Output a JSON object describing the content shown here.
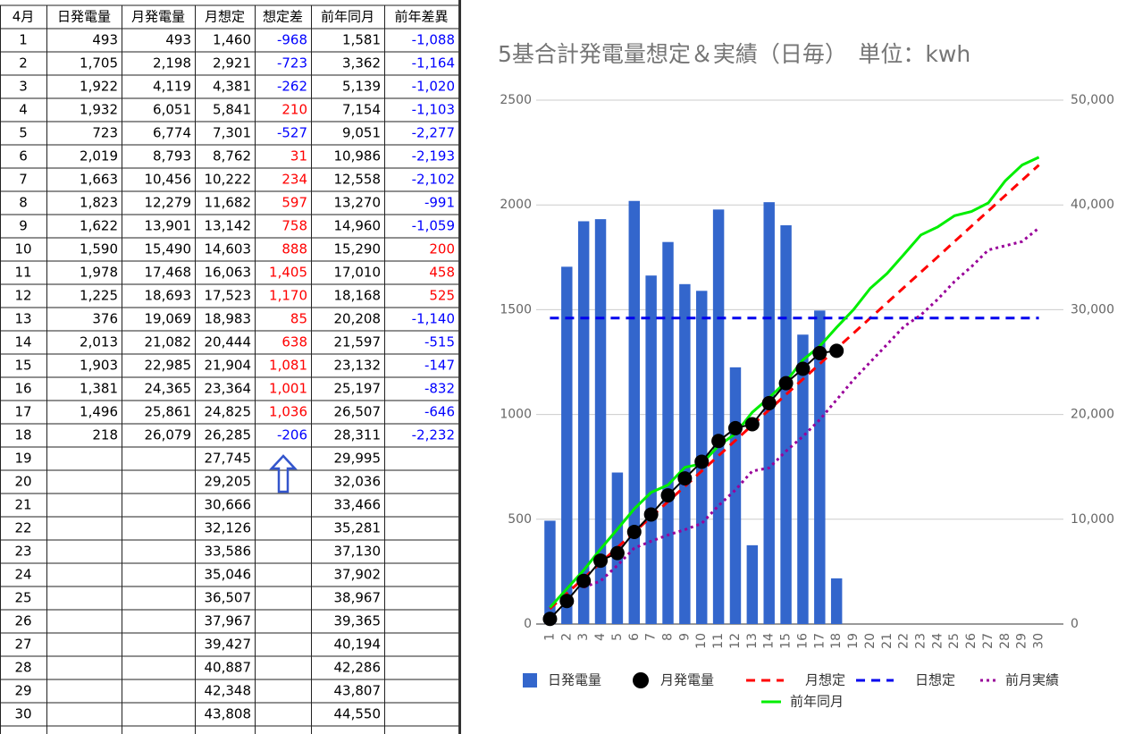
{
  "table": {
    "headers": [
      "4月",
      "日発電量",
      "月発電量",
      "月想定",
      "想定差",
      "前年同月",
      "前年差異"
    ],
    "rows": [
      [
        "1",
        "493",
        "493",
        "1,460",
        "-968",
        "1,581",
        "-1,088"
      ],
      [
        "2",
        "1,705",
        "2,198",
        "2,921",
        "-723",
        "3,362",
        "-1,164"
      ],
      [
        "3",
        "1,922",
        "4,119",
        "4,381",
        "-262",
        "5,139",
        "-1,020"
      ],
      [
        "4",
        "1,932",
        "6,051",
        "5,841",
        "210",
        "7,154",
        "-1,103"
      ],
      [
        "5",
        "723",
        "6,774",
        "7,301",
        "-527",
        "9,051",
        "-2,277"
      ],
      [
        "6",
        "2,019",
        "8,793",
        "8,762",
        "31",
        "10,986",
        "-2,193"
      ],
      [
        "7",
        "1,663",
        "10,456",
        "10,222",
        "234",
        "12,558",
        "-2,102"
      ],
      [
        "8",
        "1,823",
        "12,279",
        "11,682",
        "597",
        "13,270",
        "-991"
      ],
      [
        "9",
        "1,622",
        "13,901",
        "13,142",
        "758",
        "14,960",
        "-1,059"
      ],
      [
        "10",
        "1,590",
        "15,490",
        "14,603",
        "888",
        "15,290",
        "200"
      ],
      [
        "11",
        "1,978",
        "17,468",
        "16,063",
        "1,405",
        "17,010",
        "458"
      ],
      [
        "12",
        "1,225",
        "18,693",
        "17,523",
        "1,170",
        "18,168",
        "525"
      ],
      [
        "13",
        "376",
        "19,069",
        "18,983",
        "85",
        "20,208",
        "-1,140"
      ],
      [
        "14",
        "2,013",
        "21,082",
        "20,444",
        "638",
        "21,597",
        "-515"
      ],
      [
        "15",
        "1,903",
        "22,985",
        "21,904",
        "1,081",
        "23,132",
        "-147"
      ],
      [
        "16",
        "1,381",
        "24,365",
        "23,364",
        "1,001",
        "25,197",
        "-832"
      ],
      [
        "17",
        "1,496",
        "25,861",
        "24,825",
        "1,036",
        "26,507",
        "-646"
      ],
      [
        "18",
        "218",
        "26,079",
        "26,285",
        "-206",
        "28,311",
        "-2,232"
      ],
      [
        "19",
        null,
        null,
        "27,745",
        null,
        "29,995",
        null
      ],
      [
        "20",
        null,
        null,
        "29,205",
        null,
        "32,036",
        null
      ],
      [
        "21",
        null,
        null,
        "30,666",
        null,
        "33,466",
        null
      ],
      [
        "22",
        null,
        null,
        "32,126",
        null,
        "35,281",
        null
      ],
      [
        "23",
        null,
        null,
        "33,586",
        null,
        "37,130",
        null
      ],
      [
        "24",
        null,
        null,
        "35,046",
        null,
        "37,902",
        null
      ],
      [
        "25",
        null,
        null,
        "36,507",
        null,
        "38,967",
        null
      ],
      [
        "26",
        null,
        null,
        "37,967",
        null,
        "39,365",
        null
      ],
      [
        "27",
        null,
        null,
        "39,427",
        null,
        "40,194",
        null
      ],
      [
        "28",
        null,
        null,
        "40,887",
        null,
        "42,286",
        null
      ],
      [
        "29",
        null,
        null,
        "42,348",
        null,
        "43,807",
        null
      ],
      [
        "30",
        null,
        null,
        "43,808",
        null,
        "44,550",
        null
      ]
    ]
  },
  "chart_data": {
    "type": "combo",
    "title": "5基合計発電量想定＆実績（日毎）　単位：kwh",
    "categories": [
      "1",
      "2",
      "3",
      "4",
      "5",
      "6",
      "7",
      "8",
      "9",
      "10",
      "11",
      "12",
      "13",
      "14",
      "15",
      "16",
      "17",
      "18",
      "19",
      "20",
      "21",
      "22",
      "23",
      "24",
      "25",
      "26",
      "27",
      "28",
      "29",
      "30"
    ],
    "ylim": [
      0,
      2500
    ],
    "yticks": [
      0,
      500,
      1000,
      1500,
      2000,
      2500
    ],
    "y2lim": [
      0,
      50000
    ],
    "y2ticks": [
      0,
      {
        "value": 10000,
        "label": "10,000"
      },
      {
        "value": 20000,
        "label": "20,000"
      },
      {
        "value": 30000,
        "label": "30,000"
      },
      {
        "value": 40000,
        "label": "40,000"
      },
      {
        "value": 50000,
        "label": "50,000"
      }
    ],
    "grid": true,
    "legend": "bottom",
    "series": [
      {
        "name": "日発電量",
        "type": "bar",
        "color": "#3366cc",
        "values": [
          493,
          1705,
          1922,
          1932,
          723,
          2019,
          1663,
          1823,
          1622,
          1590,
          1978,
          1225,
          376,
          2013,
          1903,
          1381,
          1496,
          218,
          null,
          null,
          null,
          null,
          null,
          null,
          null,
          null,
          null,
          null,
          null,
          null
        ]
      },
      {
        "name": "月発電量",
        "type": "scatter",
        "axis": "y2",
        "color": "#000000",
        "values": [
          493,
          2198,
          4119,
          6051,
          6774,
          8793,
          10456,
          12279,
          13901,
          15490,
          17468,
          18693,
          19069,
          21082,
          22985,
          24365,
          25861,
          26079,
          null,
          null,
          null,
          null,
          null,
          null,
          null,
          null,
          null,
          null,
          null,
          null
        ]
      },
      {
        "name": "月想定",
        "type": "line",
        "style": "dashed",
        "axis": "y2",
        "color": "#ff0000",
        "values": [
          1460,
          2921,
          4381,
          5841,
          7301,
          8762,
          10222,
          11682,
          13142,
          14603,
          16063,
          17523,
          18983,
          20444,
          21904,
          23364,
          24825,
          26285,
          27745,
          29205,
          30666,
          32126,
          33586,
          35046,
          36507,
          37967,
          39427,
          40887,
          42348,
          43808
        ]
      },
      {
        "name": "日想定",
        "type": "line",
        "style": "dashed",
        "color": "#0000ee",
        "values": [
          1460,
          1460,
          1460,
          1460,
          1460,
          1460,
          1460,
          1460,
          1460,
          1460,
          1460,
          1460,
          1460,
          1460,
          1460,
          1460,
          1460,
          1460,
          1460,
          1460,
          1460,
          1460,
          1460,
          1460,
          1460,
          1460,
          1460,
          1460,
          1460,
          1460
        ]
      },
      {
        "name": "前月実績",
        "type": "line",
        "style": "dotted",
        "axis": "y2",
        "color": "#990099",
        "values": [
          null,
          null,
          3500,
          4100,
          5600,
          7250,
          7900,
          8500,
          9000,
          9600,
          11300,
          12800,
          14600,
          14900,
          16500,
          17900,
          19500,
          21400,
          23300,
          25000,
          26700,
          28400,
          29500,
          31000,
          32700,
          34100,
          35700,
          36100,
          36500,
          37800
        ]
      },
      {
        "name": "前年同月",
        "type": "line",
        "style": "solid",
        "axis": "y2",
        "color": "#00ee00",
        "values": [
          1581,
          3362,
          5139,
          7154,
          9051,
          10986,
          12558,
          13270,
          14960,
          15290,
          17010,
          18168,
          20208,
          21597,
          23132,
          25197,
          26507,
          28311,
          29995,
          32036,
          33466,
          35281,
          37130,
          37902,
          38967,
          39365,
          40194,
          42286,
          43807,
          44550
        ]
      }
    ]
  }
}
